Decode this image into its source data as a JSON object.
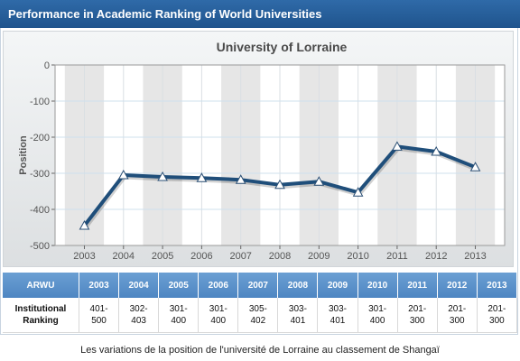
{
  "header": {
    "title": "Performance in Academic Ranking of World Universities"
  },
  "chart_data": {
    "type": "line",
    "title": "University of Lorraine",
    "xlabel": "",
    "ylabel": "Position",
    "categories": [
      "2003",
      "2004",
      "2005",
      "2006",
      "2007",
      "2008",
      "2009",
      "2010",
      "2011",
      "2012",
      "2013"
    ],
    "series": [
      {
        "values": [
          -445,
          -305,
          -310,
          -313,
          -318,
          -332,
          -323,
          -353,
          -226,
          -240,
          -283
        ]
      }
    ],
    "ylim": [
      -500,
      0
    ],
    "yticks": [
      "0",
      "-100",
      "-200",
      "-300",
      "-400",
      "-500"
    ],
    "ytick_values": [
      0,
      -100,
      -200,
      -300,
      -400,
      -500
    ],
    "grid": true,
    "line_color": "#1f4e7a",
    "marker": "triangle"
  },
  "table": {
    "headers": [
      "ARWU",
      "2003",
      "2004",
      "2005",
      "2006",
      "2007",
      "2008",
      "2009",
      "2010",
      "2011",
      "2012",
      "2013"
    ],
    "row_label": [
      "Institutional",
      "Ranking"
    ],
    "cells": [
      [
        "401-",
        "500"
      ],
      [
        "302-",
        "403"
      ],
      [
        "301-",
        "400"
      ],
      [
        "301-",
        "400"
      ],
      [
        "305-",
        "402"
      ],
      [
        "303-",
        "401"
      ],
      [
        "303-",
        "401"
      ],
      [
        "301-",
        "400"
      ],
      [
        "201-",
        "300"
      ],
      [
        "201-",
        "300"
      ],
      [
        "201-",
        "300"
      ]
    ]
  },
  "caption": "Les variations de la position de l'université de Lorraine au classement de Shangaï",
  "colors": {
    "header": "#245b96",
    "table_header": "#5a8fc8",
    "band": "#e6e6e6"
  }
}
